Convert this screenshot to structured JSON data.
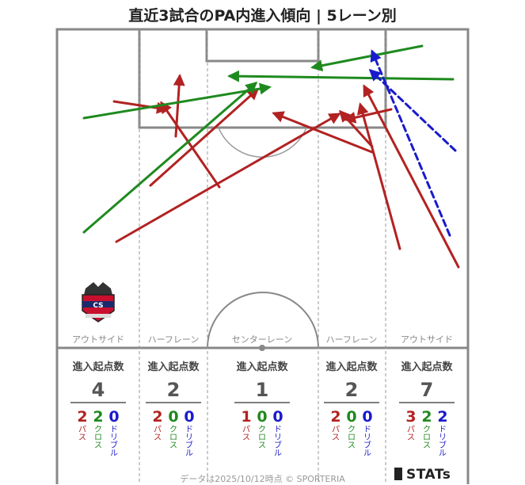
{
  "title": "直近3試合のPA内進入傾向 | 5レーン別",
  "footer": {
    "note": "データは2025/10/12時点 © SPORTERIA",
    "brand": "STATs"
  },
  "colors": {
    "pass": "#b22222",
    "cross": "#1e8a1e",
    "dribble": "#1a1acc",
    "pitch_line": "#888888"
  },
  "club_logo": "consadole-sapporo-crest",
  "chart_data": {
    "type": "arrow-map",
    "lanes": [
      {
        "name": "アウトサイド",
        "header": "進入起点数",
        "total": 4,
        "pass": 2,
        "cross": 2,
        "dribble": 0
      },
      {
        "name": "ハーフレーン",
        "header": "進入起点数",
        "total": 2,
        "pass": 2,
        "cross": 0,
        "dribble": 0
      },
      {
        "name": "センターレーン",
        "header": "進入起点数",
        "total": 1,
        "pass": 1,
        "cross": 0,
        "dribble": 0
      },
      {
        "name": "ハーフレーン",
        "header": "進入起点数",
        "total": 2,
        "pass": 2,
        "cross": 0,
        "dribble": 0
      },
      {
        "name": "アウトサイド",
        "header": "進入起点数",
        "total": 7,
        "pass": 3,
        "cross": 2,
        "dribble": 2
      }
    ],
    "type_labels": {
      "pass": "パス",
      "cross": "クロス",
      "dribble": "ドリブル"
    },
    "arrows": [
      {
        "kind": "pass",
        "from": [
          144,
          128
        ],
        "to": [
          210,
          138
        ]
      },
      {
        "kind": "pass",
        "from": [
          222,
          172
        ],
        "to": [
          227,
          96
        ]
      },
      {
        "kind": "pass",
        "from": [
          277,
          236
        ],
        "to": [
          204,
          130
        ]
      },
      {
        "kind": "pass",
        "from": [
          190,
          234
        ],
        "to": [
          325,
          113
        ]
      },
      {
        "kind": "pass",
        "from": [
          147,
          305
        ],
        "to": [
          428,
          144
        ]
      },
      {
        "kind": "pass",
        "from": [
          505,
          314
        ],
        "to": [
          455,
          132
        ]
      },
      {
        "kind": "pass",
        "from": [
          470,
          192
        ],
        "to": [
          346,
          143
        ]
      },
      {
        "kind": "pass",
        "from": [
          470,
          185
        ],
        "to": [
          430,
          141
        ]
      },
      {
        "kind": "pass",
        "from": [
          579,
          337
        ],
        "to": [
          460,
          109
        ]
      },
      {
        "kind": "pass",
        "from": [
          494,
          138
        ],
        "to": [
          437,
          151
        ]
      },
      {
        "kind": "cross",
        "from": [
          106,
          149
        ],
        "to": [
          340,
          110
        ]
      },
      {
        "kind": "cross",
        "from": [
          106,
          293
        ],
        "to": [
          323,
          105
        ]
      },
      {
        "kind": "cross",
        "from": [
          572,
          100
        ],
        "to": [
          290,
          96
        ]
      },
      {
        "kind": "cross",
        "from": [
          533,
          58
        ],
        "to": [
          395,
          85
        ]
      },
      {
        "kind": "dribble",
        "from": [
          568,
          297
        ],
        "to": [
          470,
          65
        ]
      },
      {
        "kind": "dribble",
        "from": [
          575,
          190
        ],
        "to": [
          468,
          89
        ]
      }
    ]
  }
}
